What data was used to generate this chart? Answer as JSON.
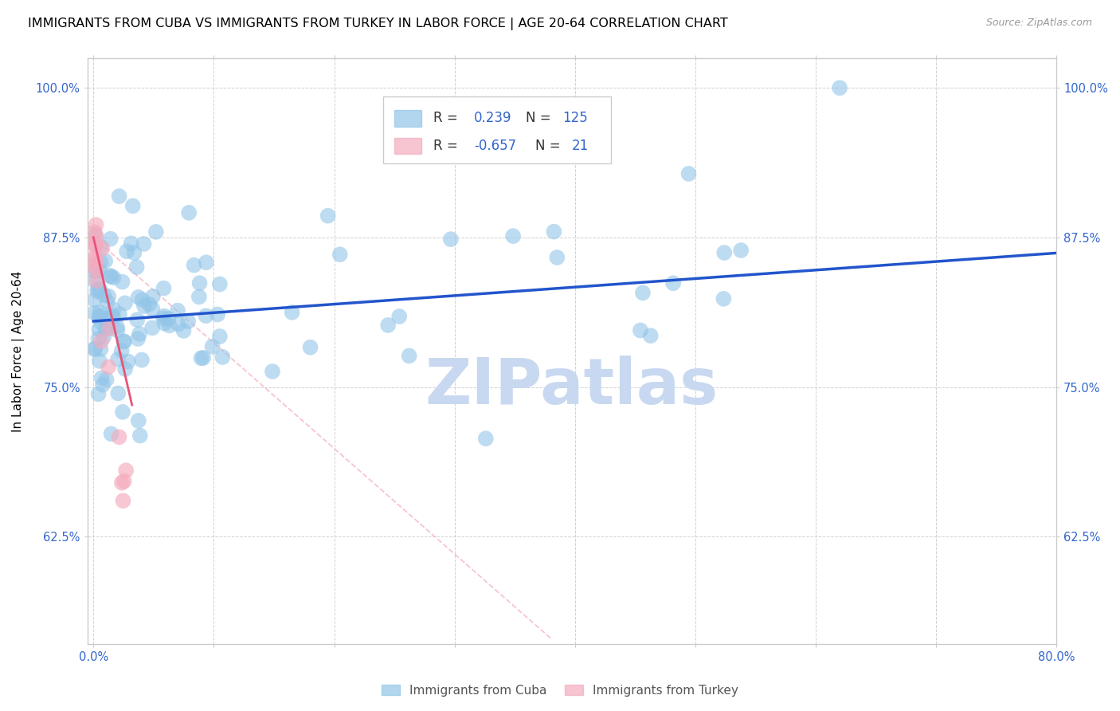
{
  "title": "IMMIGRANTS FROM CUBA VS IMMIGRANTS FROM TURKEY IN LABOR FORCE | AGE 20-64 CORRELATION CHART",
  "source": "Source: ZipAtlas.com",
  "ylabel": "In Labor Force | Age 20-64",
  "x_ticks": [
    0.0,
    0.1,
    0.2,
    0.3,
    0.4,
    0.5,
    0.6,
    0.7,
    0.8
  ],
  "y_ticks": [
    0.625,
    0.75,
    0.875,
    1.0
  ],
  "y_tick_labels": [
    "62.5%",
    "75.0%",
    "87.5%",
    "100.0%"
  ],
  "xlim": [
    -0.005,
    0.8
  ],
  "ylim": [
    0.535,
    1.025
  ],
  "cuba_color": "#92C5E8",
  "turkey_color": "#F4ABBE",
  "cuba_line_color": "#2255CC",
  "turkey_line_color": "#E8547A",
  "turkey_extrap_color": "#F4ABBE",
  "watermark": "ZIPatlas",
  "watermark_color": "#C8D8F0",
  "title_fontsize": 11.5,
  "label_fontsize": 11,
  "tick_fontsize": 10.5,
  "legend_fontsize": 12
}
